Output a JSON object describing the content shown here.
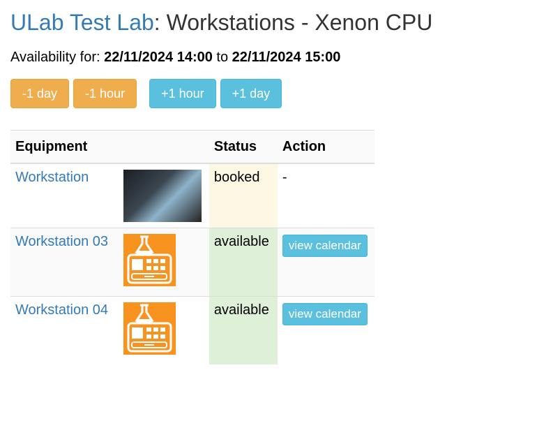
{
  "header": {
    "lab_link": "ULab Test Lab",
    "title_rest": ": Workstations - Xenon CPU"
  },
  "availability": {
    "label": "Availability for:",
    "from": "22/11/2024 14:00",
    "to_label": "to",
    "to": "22/11/2024 15:00"
  },
  "nav": {
    "minus_day": "-1 day",
    "minus_hour": "-1 hour",
    "plus_hour": "+1 hour",
    "plus_day": "+1 day"
  },
  "table": {
    "headers": [
      "Equipment",
      "Status",
      "Action"
    ],
    "rows": [
      {
        "name": "Workstation",
        "image": "photo-lab",
        "status": "booked",
        "action": "-"
      },
      {
        "name": "Workstation 03",
        "image": "equipment-icon",
        "status": "available",
        "action": "view calendar"
      },
      {
        "name": "Workstation 04",
        "image": "equipment-icon",
        "status": "available",
        "action": "view calendar"
      }
    ]
  },
  "colors": {
    "link": "#337ab7",
    "warning": "#f0ad4e",
    "info": "#5bc0de",
    "booked_bg": "#fcf8e3",
    "available_bg": "#dff0d8",
    "icon_orange": "#f7931e"
  }
}
